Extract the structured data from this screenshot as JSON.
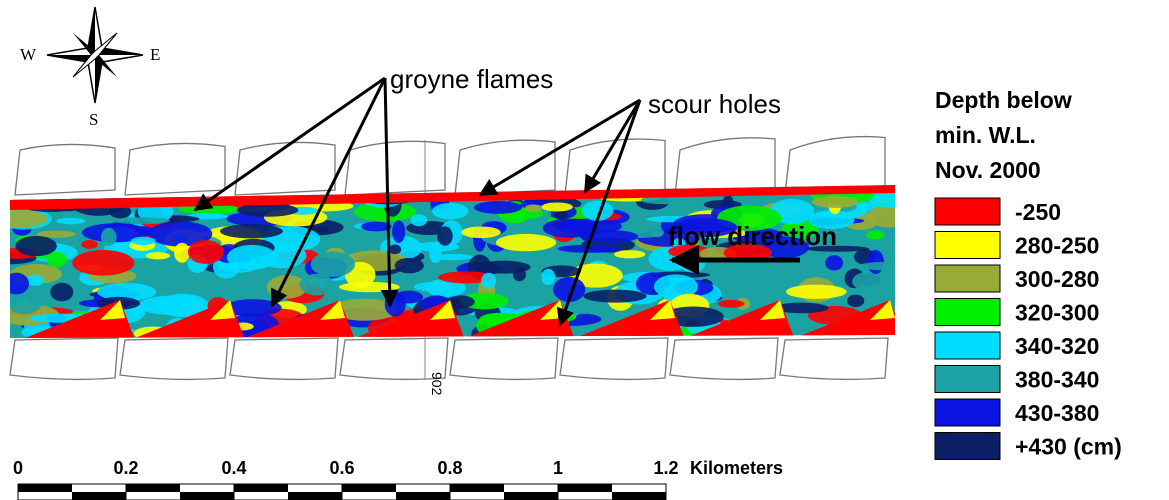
{
  "compass": {
    "west": "W",
    "east": "E",
    "south": "S"
  },
  "annotations": {
    "groyne": "groyne flames",
    "scour": "scour holes",
    "flow": "flow direction",
    "station": "902"
  },
  "legend": {
    "title": [
      "Depth below",
      "min. W.L.",
      "Nov. 2000"
    ],
    "items": [
      {
        "label": "-250",
        "color": "#ff0000"
      },
      {
        "label": "280-250",
        "color": "#ffff00"
      },
      {
        "label": "300-280",
        "color": "#9aab35"
      },
      {
        "label": "320-300",
        "color": "#00ee00"
      },
      {
        "label": "340-320",
        "color": "#00ddff"
      },
      {
        "label": "380-340",
        "color": "#1ba3a3"
      },
      {
        "label": "430-380",
        "color": "#0a14e0"
      },
      {
        "label": "+430 (cm)",
        "color": "#0a1f66"
      }
    ]
  },
  "scale_bar": {
    "labels": [
      "0",
      "0.2",
      "0.4",
      "0.6",
      "0.8",
      "1",
      "1.2"
    ],
    "unit": "Kilometers"
  }
}
